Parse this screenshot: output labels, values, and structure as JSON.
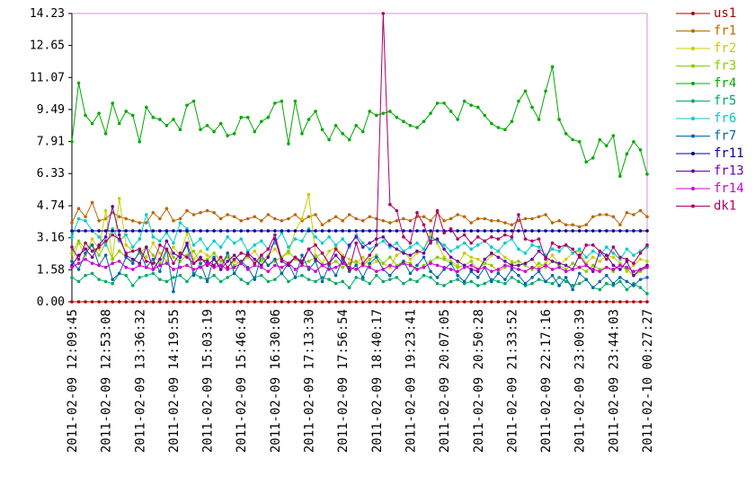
{
  "chart_data": {
    "type": "line",
    "categories": [
      "2011-02-09 12:09:45",
      null,
      null,
      null,
      null,
      "2011-02-09 12:53:08",
      null,
      null,
      null,
      null,
      "2011-02-09 13:36:32",
      null,
      null,
      null,
      null,
      "2011-02-09 14:19:55",
      null,
      null,
      null,
      null,
      "2011-02-09 15:03:19",
      null,
      null,
      null,
      null,
      "2011-02-09 15:46:43",
      null,
      null,
      null,
      null,
      "2011-02-09 16:30:06",
      null,
      null,
      null,
      null,
      "2011-02-09 17:13:30",
      null,
      null,
      null,
      null,
      "2011-02-09 17:56:54",
      null,
      null,
      null,
      null,
      "2011-02-09 18:40:17",
      null,
      null,
      null,
      null,
      "2011-02-09 19:23:41",
      null,
      null,
      null,
      null,
      "2011-02-09 20:07:05",
      null,
      null,
      null,
      null,
      "2011-02-09 20:50:28",
      null,
      null,
      null,
      null,
      "2011-02-09 21:33:52",
      null,
      null,
      null,
      null,
      "2011-02-09 22:17:16",
      null,
      null,
      null,
      null,
      "2011-02-09 23:00:39",
      null,
      null,
      null,
      null,
      "2011-02-09 23:44:03",
      null,
      null,
      null,
      null,
      "2011-02-10 00:27:27"
    ],
    "ylim": [
      0,
      14.23
    ],
    "yticks": [
      {
        "value": 0,
        "label": "0.00"
      },
      {
        "value": 1.58,
        "label": "1.58"
      },
      {
        "value": 3.16,
        "label": "3.16"
      },
      {
        "value": 4.74,
        "label": "4.74"
      },
      {
        "value": 6.33,
        "label": "6.33"
      },
      {
        "value": 7.91,
        "label": "7.91"
      },
      {
        "value": 9.49,
        "label": "9.49"
      },
      {
        "value": 11.07,
        "label": "11.07"
      },
      {
        "value": 12.65,
        "label": "12.65"
      },
      {
        "value": 14.23,
        "label": "14.23"
      }
    ],
    "legend": "right",
    "series": [
      {
        "name": "us1",
        "color": "#aa0000",
        "values": [
          0,
          0,
          0,
          0,
          0,
          0,
          0,
          0,
          0,
          0,
          0,
          0,
          0,
          0,
          0,
          0,
          0,
          0,
          0,
          0,
          0,
          0,
          0,
          0,
          0,
          0,
          0,
          0,
          0,
          0,
          0,
          0,
          0,
          0,
          0,
          0,
          0,
          0,
          0,
          0,
          0,
          0,
          0,
          0,
          0,
          0,
          0,
          0,
          0,
          0,
          0,
          0,
          0,
          0,
          0,
          0,
          0,
          0,
          0,
          0,
          0,
          0,
          0,
          0,
          0,
          0,
          0,
          0,
          0,
          0,
          0,
          0,
          0,
          0,
          0,
          0,
          0,
          0,
          0,
          0,
          0,
          0,
          0,
          0,
          0,
          0
        ]
      },
      {
        "name": "fr1",
        "color": "#bb6600",
        "values": [
          3.9,
          4.6,
          4.2,
          4.9,
          4.0,
          4.1,
          4.4,
          4.2,
          4.1,
          4.0,
          3.9,
          3.9,
          4.4,
          4.1,
          4.6,
          4.0,
          4.1,
          4.5,
          4.3,
          4.4,
          4.5,
          4.4,
          4.1,
          4.3,
          4.2,
          4.0,
          4.1,
          4.2,
          4.0,
          4.3,
          4.1,
          4.0,
          4.1,
          4.3,
          4.0,
          4.2,
          4.3,
          3.8,
          4.0,
          4.2,
          4.0,
          4.3,
          4.1,
          4.0,
          4.2,
          4.1,
          4.0,
          3.9,
          4.0,
          4.1,
          4.0,
          4.2,
          4.2,
          4.0,
          4.4,
          4.0,
          4.1,
          4.3,
          4.2,
          3.9,
          4.1,
          4.1,
          4.0,
          4.0,
          3.9,
          3.8,
          4.0,
          4.1,
          4.1,
          4.2,
          4.3,
          3.9,
          4.0,
          3.8,
          3.8,
          3.7,
          3.8,
          4.2,
          4.3,
          4.3,
          4.2,
          3.8,
          4.4,
          4.3,
          4.5,
          4.2
        ]
      },
      {
        "name": "fr2",
        "color": "#cccc00",
        "values": [
          2.0,
          2.9,
          2.3,
          3.1,
          2.6,
          4.5,
          2.1,
          5.1,
          2.8,
          2.5,
          2.6,
          2.2,
          2.9,
          2.4,
          2.0,
          2.7,
          2.3,
          3.4,
          2.1,
          2.5,
          2.3,
          2.1,
          1.8,
          2.4,
          2.0,
          1.9,
          2.2,
          2.5,
          2.0,
          2.3,
          2.6,
          2.2,
          2.4,
          3.5,
          4.1,
          5.3,
          2.3,
          1.9,
          2.5,
          2.7,
          2.3,
          2.1,
          1.9,
          2.2,
          1.8,
          2.0,
          1.9,
          1.7,
          2.3,
          2.5,
          2.1,
          2.4,
          2.6,
          3.4,
          2.9,
          2.2,
          2.0,
          1.8,
          2.4,
          2.2,
          2.1,
          1.9,
          2.3,
          2.5,
          2.2,
          2.0,
          1.8,
          1.9,
          2.1,
          1.7,
          1.9,
          2.3,
          1.8,
          2.1,
          2.4,
          2.5,
          1.9,
          2.2,
          2.0,
          2.3,
          2.2,
          1.9,
          1.5,
          1.8,
          2.1,
          2.0
        ]
      },
      {
        "name": "fr3",
        "color": "#88cc00",
        "values": [
          2.4,
          3.0,
          2.6,
          2.8,
          2.3,
          2.9,
          2.1,
          2.5,
          2.2,
          2.0,
          2.4,
          2.7,
          2.3,
          1.9,
          2.6,
          2.2,
          2.0,
          2.3,
          2.5,
          1.9,
          2.1,
          2.4,
          2.0,
          2.2,
          1.8,
          2.0,
          2.3,
          1.9,
          2.1,
          1.8,
          2.0,
          2.2,
          2.5,
          2.1,
          1.9,
          2.0,
          2.2,
          2.4,
          1.8,
          2.0,
          1.7,
          1.9,
          2.0,
          1.8,
          2.1,
          2.3,
          1.9,
          2.2,
          1.8,
          2.0,
          1.9,
          1.6,
          1.8,
          2.0,
          2.2,
          2.1,
          1.9,
          1.7,
          1.8,
          2.0,
          1.6,
          1.9,
          1.8,
          1.5,
          1.7,
          1.9,
          2.0,
          1.8,
          1.6,
          1.9,
          1.7,
          2.0,
          1.8,
          1.6,
          1.9,
          1.7,
          1.5,
          1.8,
          1.6,
          1.7,
          1.5,
          1.8,
          1.6,
          1.3,
          1.5,
          1.7
        ]
      },
      {
        "name": "fr4",
        "color": "#00aa00",
        "values": [
          7.9,
          10.8,
          9.2,
          8.8,
          9.3,
          8.3,
          9.8,
          8.8,
          9.4,
          9.2,
          7.9,
          9.6,
          9.1,
          9.0,
          8.7,
          9.0,
          8.5,
          9.7,
          9.9,
          8.5,
          8.7,
          8.4,
          8.8,
          8.2,
          8.3,
          9.1,
          9.1,
          8.4,
          8.9,
          9.1,
          9.8,
          9.9,
          7.8,
          9.9,
          8.3,
          9.0,
          9.4,
          8.5,
          8.0,
          8.7,
          8.3,
          8.0,
          8.7,
          8.4,
          9.4,
          9.2,
          9.3,
          9.4,
          9.1,
          8.9,
          8.7,
          8.6,
          8.9,
          9.3,
          9.8,
          9.8,
          9.4,
          9.0,
          9.9,
          9.7,
          9.6,
          9.2,
          8.8,
          8.6,
          8.5,
          8.9,
          9.9,
          10.4,
          9.6,
          9.0,
          10.4,
          11.6,
          9.0,
          8.3,
          8.0,
          7.9,
          6.9,
          7.1,
          8.0,
          7.7,
          8.2,
          6.2,
          7.3,
          7.9,
          7.5,
          6.3
        ]
      },
      {
        "name": "fr5",
        "color": "#00aa66",
        "values": [
          1.2,
          1.0,
          1.3,
          1.4,
          1.1,
          1.0,
          0.9,
          1.4,
          1.3,
          0.8,
          1.2,
          1.3,
          1.4,
          1.1,
          1.0,
          1.2,
          1.3,
          1.0,
          1.4,
          1.2,
          1.1,
          1.3,
          1.0,
          1.2,
          1.4,
          1.1,
          0.9,
          1.2,
          1.3,
          1.0,
          1.1,
          1.4,
          1.0,
          1.2,
          1.3,
          1.1,
          1.0,
          1.2,
          1.1,
          0.9,
          1.0,
          0.7,
          1.2,
          1.1,
          0.9,
          1.3,
          1.0,
          1.1,
          1.2,
          0.9,
          1.1,
          1.0,
          1.3,
          1.2,
          0.9,
          0.8,
          1.0,
          1.1,
          0.9,
          1.0,
          0.8,
          0.9,
          1.1,
          1.0,
          0.9,
          1.2,
          1.0,
          0.8,
          0.9,
          1.1,
          1.0,
          0.9,
          1.2,
          1.0,
          0.8,
          0.9,
          1.1,
          0.7,
          0.6,
          0.9,
          0.8,
          1.0,
          0.6,
          0.9,
          0.7,
          0.4
        ]
      },
      {
        "name": "fr6",
        "color": "#00cccc",
        "values": [
          3.2,
          4.1,
          4.0,
          3.5,
          3.2,
          2.8,
          3.6,
          3.0,
          3.3,
          2.7,
          3.1,
          4.3,
          3.2,
          3.0,
          3.4,
          2.9,
          3.9,
          3.6,
          2.8,
          3.1,
          2.6,
          3.0,
          2.7,
          3.2,
          2.9,
          3.1,
          2.5,
          2.8,
          3.0,
          2.6,
          2.9,
          3.4,
          2.7,
          3.1,
          3.0,
          3.6,
          3.2,
          2.9,
          3.2,
          2.8,
          3.1,
          2.7,
          3.3,
          2.9,
          2.6,
          2.8,
          3.0,
          2.7,
          2.9,
          2.5,
          2.7,
          2.9,
          2.6,
          3.2,
          3.0,
          2.8,
          2.5,
          2.7,
          2.9,
          2.6,
          2.8,
          3.0,
          2.7,
          2.5,
          2.9,
          3.1,
          2.6,
          2.4,
          2.8,
          2.7,
          2.3,
          2.6,
          2.5,
          2.8,
          2.4,
          2.6,
          2.2,
          2.5,
          2.3,
          2.7,
          2.4,
          2.1,
          2.6,
          2.3,
          2.5,
          2.7
        ]
      },
      {
        "name": "fr7",
        "color": "#0066aa",
        "values": [
          2.0,
          1.6,
          2.4,
          2.8,
          1.8,
          2.3,
          1.1,
          1.4,
          2.2,
          1.9,
          2.5,
          1.7,
          2.1,
          1.5,
          2.6,
          0.5,
          2.2,
          2.8,
          1.3,
          1.9,
          1.0,
          2.2,
          1.6,
          2.4,
          1.4,
          2.0,
          1.7,
          1.1,
          2.3,
          1.8,
          2.1,
          1.4,
          1.9,
          1.2,
          2.3,
          1.6,
          2.0,
          1.0,
          1.8,
          1.3,
          2.1,
          1.5,
          1.8,
          1.2,
          1.9,
          2.2,
          1.6,
          1.3,
          1.7,
          2.0,
          1.4,
          1.8,
          2.2,
          1.5,
          1.2,
          1.6,
          1.9,
          1.3,
          1.0,
          1.5,
          1.2,
          1.7,
          1.0,
          1.4,
          1.1,
          1.6,
          1.3,
          0.9,
          1.2,
          1.5,
          1.0,
          1.3,
          0.8,
          1.2,
          0.6,
          1.4,
          1.1,
          0.7,
          1.0,
          1.3,
          0.9,
          1.2,
          1.0,
          0.8,
          1.1,
          1.2
        ]
      },
      {
        "name": "fr11",
        "color": "#000099",
        "values": [
          3.5,
          3.5,
          3.5,
          3.5,
          3.5,
          3.5,
          3.5,
          3.5,
          3.5,
          3.5,
          3.5,
          3.5,
          3.5,
          3.5,
          3.5,
          3.5,
          3.5,
          3.5,
          3.5,
          3.5,
          3.5,
          3.5,
          3.5,
          3.5,
          3.5,
          3.5,
          3.5,
          3.5,
          3.5,
          3.5,
          3.5,
          3.5,
          3.5,
          3.5,
          3.5,
          3.5,
          3.5,
          3.5,
          3.5,
          3.5,
          3.5,
          3.5,
          3.5,
          3.5,
          3.5,
          3.5,
          3.5,
          3.5,
          3.5,
          3.5,
          3.5,
          3.5,
          3.5,
          3.5,
          3.5,
          3.5,
          3.5,
          3.5,
          3.5,
          3.5,
          3.5,
          3.5,
          3.5,
          3.5,
          3.5,
          3.5,
          3.5,
          3.5,
          3.5,
          3.5,
          3.5,
          3.5,
          3.5,
          3.5,
          3.5,
          3.5,
          3.5,
          3.5,
          3.5,
          3.5,
          3.5,
          3.5,
          3.5,
          3.5,
          3.5,
          3.5
        ]
      },
      {
        "name": "fr13",
        "color": "#6600aa",
        "values": [
          1.8,
          2.3,
          2.6,
          2.2,
          2.8,
          3.2,
          4.7,
          3.3,
          2.3,
          2.1,
          1.9,
          2.7,
          1.6,
          2.1,
          3.0,
          2.4,
          2.2,
          2.9,
          1.9,
          2.2,
          1.8,
          2.1,
          1.6,
          2.0,
          2.3,
          1.9,
          2.4,
          2.1,
          1.8,
          2.2,
          3.1,
          2.0,
          1.8,
          2.2,
          1.9,
          2.6,
          2.1,
          1.8,
          1.9,
          2.3,
          1.9,
          2.8,
          3.2,
          2.7,
          2.9,
          3.1,
          3.2,
          2.8,
          2.6,
          2.4,
          2.3,
          2.5,
          2.4,
          3.0,
          3.1,
          2.6,
          2.2,
          2.0,
          1.8,
          1.6,
          1.5,
          2.1,
          2.4,
          2.2,
          2.0,
          1.8,
          1.8,
          1.9,
          2.1,
          2.5,
          2.2,
          2.0,
          1.9,
          1.8,
          1.6,
          2.3,
          1.8,
          1.5,
          2.5,
          2.3,
          1.8,
          1.6,
          2.0,
          1.3,
          1.6,
          1.8
        ]
      },
      {
        "name": "fr14",
        "color": "#cc00cc",
        "values": [
          1.7,
          1.9,
          2.1,
          1.9,
          1.8,
          1.7,
          1.9,
          2.0,
          1.7,
          1.6,
          1.8,
          1.7,
          1.6,
          1.8,
          1.9,
          1.6,
          1.7,
          1.8,
          1.6,
          1.7,
          1.9,
          1.7,
          1.8,
          1.6,
          1.7,
          1.9,
          1.6,
          1.8,
          1.7,
          1.5,
          1.8,
          1.7,
          1.9,
          1.6,
          1.8,
          1.7,
          1.5,
          1.8,
          1.6,
          1.7,
          1.9,
          1.7,
          1.6,
          1.8,
          1.7,
          1.5,
          1.6,
          1.8,
          1.7,
          1.9,
          1.8,
          1.6,
          1.7,
          1.9,
          1.8,
          1.7,
          1.6,
          1.5,
          1.7,
          1.8,
          1.6,
          1.7,
          1.5,
          1.6,
          1.8,
          1.7,
          1.6,
          1.5,
          1.7,
          1.6,
          1.8,
          1.6,
          1.7,
          1.5,
          1.6,
          1.7,
          1.8,
          1.6,
          1.5,
          1.7,
          1.6,
          1.8,
          1.7,
          1.5,
          1.6,
          1.7
        ]
      },
      {
        "name": "dk1",
        "color": "#aa0066",
        "values": [
          2.7,
          2.1,
          2.9,
          2.5,
          2.7,
          3.0,
          3.3,
          3.1,
          2.4,
          2.5,
          2.6,
          2.0,
          1.9,
          2.8,
          2.6,
          1.9,
          2.4,
          2.2,
          1.9,
          2.1,
          2.0,
          1.8,
          2.2,
          1.7,
          2.1,
          2.4,
          2.3,
          1.9,
          2.3,
          2.6,
          3.3,
          2.1,
          1.9,
          2.2,
          2.0,
          2.6,
          2.8,
          2.4,
          1.9,
          2.6,
          2.2,
          1.6,
          2.9,
          1.9,
          2.3,
          2.8,
          14.23,
          4.8,
          4.5,
          3.2,
          2.9,
          4.4,
          3.8,
          2.9,
          4.5,
          3.4,
          3.6,
          3.1,
          3.3,
          2.9,
          3.2,
          3.0,
          3.2,
          3.1,
          3.3,
          3.2,
          4.3,
          3.1,
          3.0,
          3.1,
          2.1,
          2.9,
          2.7,
          2.8,
          2.6,
          2.2,
          2.8,
          2.8,
          2.5,
          2.1,
          2.7,
          2.2,
          2.1,
          1.9,
          2.4,
          2.8
        ]
      }
    ]
  }
}
